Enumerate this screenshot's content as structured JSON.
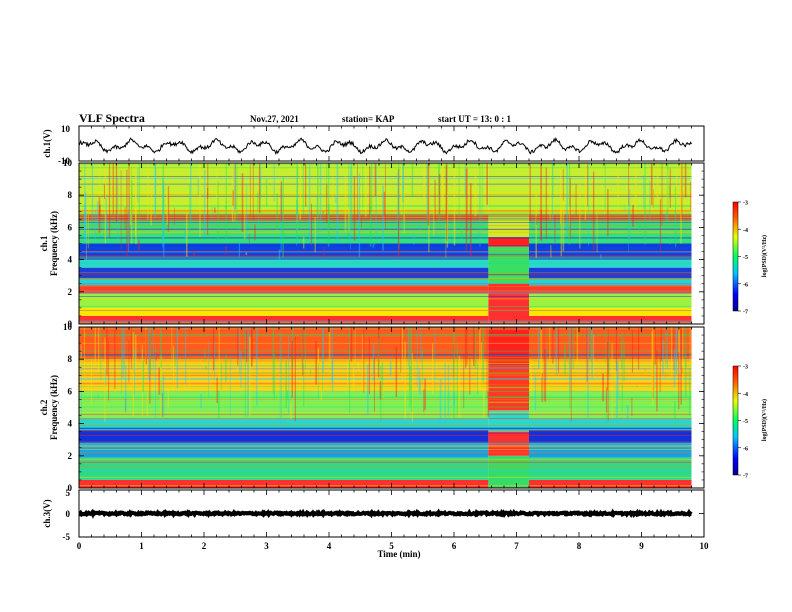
{
  "header": {
    "title": "VLF Spectra",
    "date": "Nov.27, 2021",
    "station": "station= KAP",
    "start": "start  UT =   13: 0  : 1"
  },
  "chart_data": [
    {
      "id": "ch1-waveform",
      "type": "line",
      "ylabel": "ch.1(V)",
      "ylim": [
        -10,
        10
      ],
      "yticks": [
        "10",
        "-10"
      ],
      "xlim": [
        0,
        10
      ],
      "baseline": -1.5,
      "amplitude": 4.0,
      "color": "#000000"
    },
    {
      "id": "ch1-spectrogram",
      "type": "heatmap",
      "ylabel": "ch.1",
      "ylabel2": "Frequency (kHz)",
      "ylim": [
        0,
        10
      ],
      "yticks": [
        "0",
        "2",
        "4",
        "6",
        "8",
        "10"
      ],
      "xlim": [
        0,
        10
      ],
      "colorbar": {
        "label": "log(PSD)(V²/Hz)",
        "range": [
          -7,
          -3
        ],
        "ticks": [
          "-3",
          "-4",
          "-5",
          "-6",
          "-7"
        ]
      },
      "bands": [
        {
          "from": 0.0,
          "to": 0.5,
          "color": "#ff3030"
        },
        {
          "from": 0.5,
          "to": 1.0,
          "color": "#ffe400"
        },
        {
          "from": 1.0,
          "to": 1.9,
          "color": "#9cf240"
        },
        {
          "from": 1.9,
          "to": 2.4,
          "color": "#ff3b2b"
        },
        {
          "from": 2.4,
          "to": 2.8,
          "color": "#22d4d4"
        },
        {
          "from": 2.8,
          "to": 3.5,
          "color": "#1a3fd9"
        },
        {
          "from": 3.5,
          "to": 4.0,
          "color": "#2ad9c9"
        },
        {
          "from": 4.0,
          "to": 5.0,
          "color": "#1140e0"
        },
        {
          "from": 5.0,
          "to": 6.4,
          "color": "#34e07a"
        },
        {
          "from": 6.4,
          "to": 6.8,
          "color": "#ff4020"
        },
        {
          "from": 6.8,
          "to": 10.0,
          "color": "#c6ee30"
        }
      ],
      "event": {
        "from": 6.55,
        "to": 7.2,
        "bands": [
          {
            "from": 0.0,
            "to": 2.5,
            "color": "#ff3030"
          },
          {
            "from": 2.5,
            "to": 4.8,
            "color": "#38e060"
          },
          {
            "from": 4.8,
            "to": 5.4,
            "color": "#ff2020"
          },
          {
            "from": 5.4,
            "to": 10.0,
            "color": "#c6ee30"
          }
        ]
      }
    },
    {
      "id": "ch2-spectrogram",
      "type": "heatmap",
      "ylabel": "ch.2",
      "ylabel2": "Frequency (kHz)",
      "ylim": [
        0,
        10
      ],
      "yticks": [
        "0",
        "2",
        "4",
        "6",
        "8",
        "10"
      ],
      "xlim": [
        0,
        10
      ],
      "colorbar": {
        "label": "log(PSD)(V²/Hz)",
        "range": [
          -7,
          -3
        ],
        "ticks": [
          "-3",
          "-4",
          "-5",
          "-6",
          "-7"
        ]
      },
      "bands": [
        {
          "from": 0.0,
          "to": 0.5,
          "color": "#ff3030"
        },
        {
          "from": 0.5,
          "to": 1.9,
          "color": "#2fd98a"
        },
        {
          "from": 1.9,
          "to": 2.8,
          "color": "#1c9fe0"
        },
        {
          "from": 2.8,
          "to": 3.6,
          "color": "#1530d8"
        },
        {
          "from": 3.6,
          "to": 4.3,
          "color": "#29d6c8"
        },
        {
          "from": 4.3,
          "to": 6.0,
          "color": "#7ff05a"
        },
        {
          "from": 6.0,
          "to": 8.0,
          "color": "#ffd21a"
        },
        {
          "from": 8.0,
          "to": 10.0,
          "color": "#ff5a20"
        }
      ],
      "event": {
        "from": 6.55,
        "to": 7.2,
        "bands": [
          {
            "from": 0.0,
            "to": 2.0,
            "color": "#36dc6a"
          },
          {
            "from": 2.0,
            "to": 3.5,
            "color": "#ff3030"
          },
          {
            "from": 3.5,
            "to": 4.8,
            "color": "#2ad9c9"
          },
          {
            "from": 4.8,
            "to": 7.5,
            "color": "#ff3a20"
          },
          {
            "from": 7.5,
            "to": 10.0,
            "color": "#ff2020"
          }
        ]
      }
    },
    {
      "id": "ch3-waveform",
      "type": "line",
      "ylabel": "ch.3(V)",
      "ylim": [
        -5,
        5
      ],
      "yticks": [
        "5",
        "0",
        "-5"
      ],
      "xlim": [
        0,
        10
      ],
      "baseline": 0.0,
      "amplitude": 0.4,
      "color": "#000000"
    }
  ],
  "xaxis": {
    "label": "Time (min)",
    "ticks": [
      "0",
      "1",
      "2",
      "3",
      "4",
      "5",
      "6",
      "7",
      "8",
      "9",
      "10"
    ],
    "data_end": 9.8
  }
}
